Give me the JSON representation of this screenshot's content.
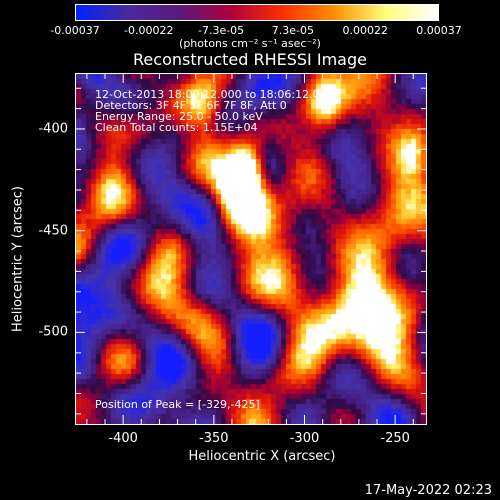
{
  "colorbar": {
    "ticks": [
      "-0.00037",
      "-0.00022",
      "-7.3e-05",
      "7.3e-05",
      "0.00022",
      "0.00037"
    ],
    "tick_values": [
      -0.00037,
      -0.00022,
      -7.3e-05,
      7.3e-05,
      0.00022,
      0.00037
    ],
    "range": [
      -0.00037,
      0.00037
    ],
    "unit": "(photons cm⁻² s⁻¹ asec⁻²)",
    "colors": [
      "#0022ff",
      "#4a2a9e",
      "#5a1a7a",
      "#b0003a",
      "#ff3000",
      "#ff9000",
      "#ffff80",
      "#ffffff"
    ]
  },
  "title": "Reconstructed RHESSI Image",
  "info": {
    "line1": "12-Oct-2013 18:00:12.000 to 18:06:12.000",
    "line2": "Detectors: 3F 4F 5F 6F 7F 8F, Att 0",
    "line3": "Energy Range: 25.0 - 50.0 keV",
    "line4": "Clean     Total counts: 1.15E+04"
  },
  "axes": {
    "xlabel": "Heliocentric X (arcsec)",
    "ylabel": "Heliocentric Y (arcsec)",
    "xticks": [
      "-400",
      "-350",
      "-300",
      "-250"
    ],
    "xtick_values": [
      -400,
      -350,
      -300,
      -250
    ],
    "yticks": [
      "-400",
      "-450",
      "-500"
    ],
    "ytick_values": [
      -400,
      -450,
      -500
    ],
    "xlim": [
      -426,
      -233
    ],
    "ylim": [
      -545,
      -373
    ]
  },
  "peak": "Position of Peak = [-329,-425]",
  "timestamp": "17-May-2022 02:23"
}
